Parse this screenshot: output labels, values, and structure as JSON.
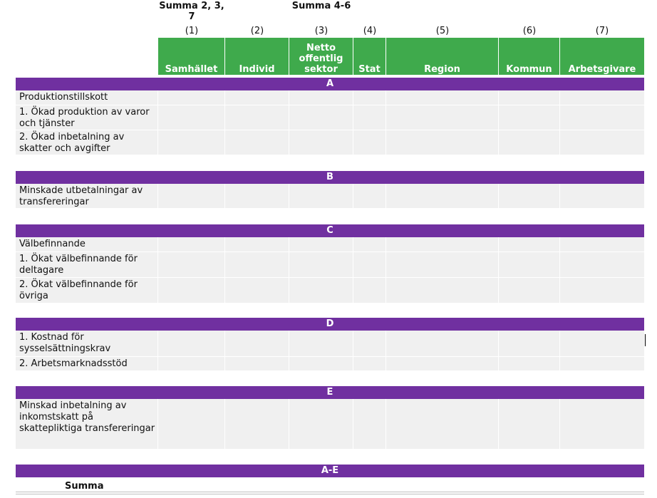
{
  "header": {
    "sum_labels": [
      {
        "id": "sum1",
        "text": "Summa 2, 3, 7"
      },
      {
        "id": "sum3",
        "text": "Summa 4-6"
      }
    ],
    "column_numbers": [
      "(1)",
      "(2)",
      "(3)",
      "(4)",
      "(5)",
      "(6)",
      "(7)"
    ],
    "column_titles": [
      {
        "title": "Samhället"
      },
      {
        "title": "Individ"
      },
      {
        "title": "Netto offentlig sektor"
      },
      {
        "title": "Stat"
      },
      {
        "title": "Region"
      },
      {
        "title": "Kommun"
      },
      {
        "title": "Arbetsgivare"
      }
    ]
  },
  "sections": [
    {
      "band": "A",
      "rows": [
        "Produktionstillskott",
        "1. Ökad produktion av varor och tjänster",
        "2. Ökad inbetalning av skatter och avgifter"
      ]
    },
    {
      "band": "B",
      "rows": [
        "Minskade utbetalningar av transfereringar"
      ]
    },
    {
      "band": "C",
      "rows": [
        "Välbefinnande",
        "1. Ökat välbefinnande för deltagare",
        "2. Ökat välbefinnande för övriga"
      ]
    },
    {
      "band": "D",
      "rows": [
        "1. Kostnad för sysselsättningskrav",
        "2. Arbetsmarknadsstöd"
      ]
    },
    {
      "band": "E",
      "rows": [
        "Minskad inbetalning av inkomstskatt på skattepliktiga transfereringar"
      ]
    },
    {
      "band": "A-E",
      "rows": []
    }
  ],
  "footer": {
    "summa_label": "Summa"
  },
  "colors": {
    "green_header": "#3faa4c",
    "purple_band": "#7030a0",
    "cell_bg": "#f0f0f0"
  }
}
